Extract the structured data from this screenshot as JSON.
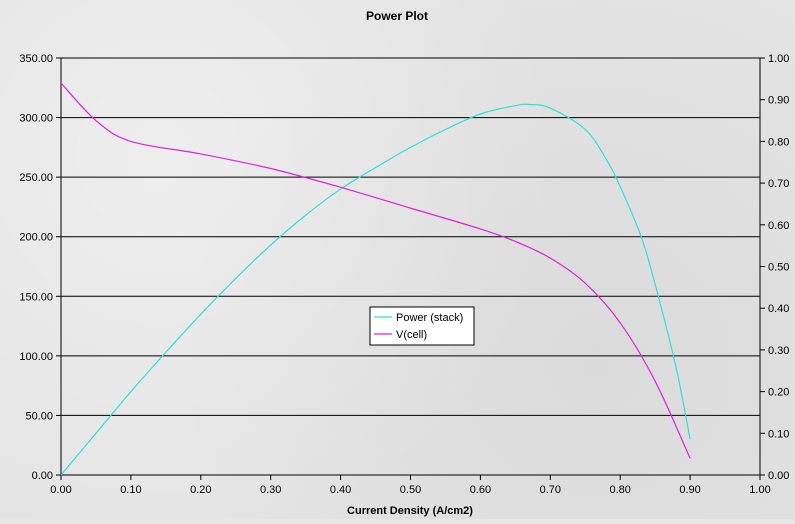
{
  "chart_data": {
    "type": "line",
    "title": "Power Plot",
    "xlabel": "Current Density (A/cm2)",
    "ylabel": "",
    "y2label": "",
    "xlim": [
      0,
      1
    ],
    "ylim": [
      0,
      350
    ],
    "y2lim": [
      0,
      1
    ],
    "x_ticks": [
      "0.00",
      "0.10",
      "0.20",
      "0.30",
      "0.40",
      "0.50",
      "0.60",
      "0.70",
      "0.80",
      "0.90",
      "1.00"
    ],
    "y_ticks": [
      "0.00",
      "50.00",
      "100.00",
      "150.00",
      "200.00",
      "250.00",
      "300.00",
      "350.00"
    ],
    "y2_ticks": [
      "0.00",
      "0.10",
      "0.20",
      "0.30",
      "0.40",
      "0.50",
      "0.60",
      "0.70",
      "0.80",
      "0.90",
      "1.00"
    ],
    "grid": "horizontal major gridlines",
    "legend_position": "center",
    "series": [
      {
        "name": "Power (stack)",
        "axis": "left",
        "color": "#33dddd",
        "points": [
          [
            0.0,
            0
          ],
          [
            0.05,
            35
          ],
          [
            0.1,
            70
          ],
          [
            0.15,
            103
          ],
          [
            0.2,
            135
          ],
          [
            0.25,
            165
          ],
          [
            0.3,
            193
          ],
          [
            0.35,
            218
          ],
          [
            0.4,
            240
          ],
          [
            0.45,
            258
          ],
          [
            0.5,
            275
          ],
          [
            0.55,
            290
          ],
          [
            0.6,
            303
          ],
          [
            0.65,
            310
          ],
          [
            0.67,
            311
          ],
          [
            0.7,
            308
          ],
          [
            0.75,
            290
          ],
          [
            0.78,
            265
          ],
          [
            0.8,
            242
          ],
          [
            0.83,
            200
          ],
          [
            0.85,
            160
          ],
          [
            0.88,
            90
          ],
          [
            0.9,
            30
          ]
        ]
      },
      {
        "name": "V(cell)",
        "axis": "right",
        "color": "#dd22dd",
        "points": [
          [
            0.0,
            0.94
          ],
          [
            0.05,
            0.85
          ],
          [
            0.1,
            0.8
          ],
          [
            0.2,
            0.77
          ],
          [
            0.3,
            0.735
          ],
          [
            0.4,
            0.69
          ],
          [
            0.5,
            0.64
          ],
          [
            0.6,
            0.59
          ],
          [
            0.65,
            0.56
          ],
          [
            0.7,
            0.52
          ],
          [
            0.75,
            0.46
          ],
          [
            0.8,
            0.365
          ],
          [
            0.85,
            0.225
          ],
          [
            0.9,
            0.04
          ]
        ]
      }
    ]
  }
}
